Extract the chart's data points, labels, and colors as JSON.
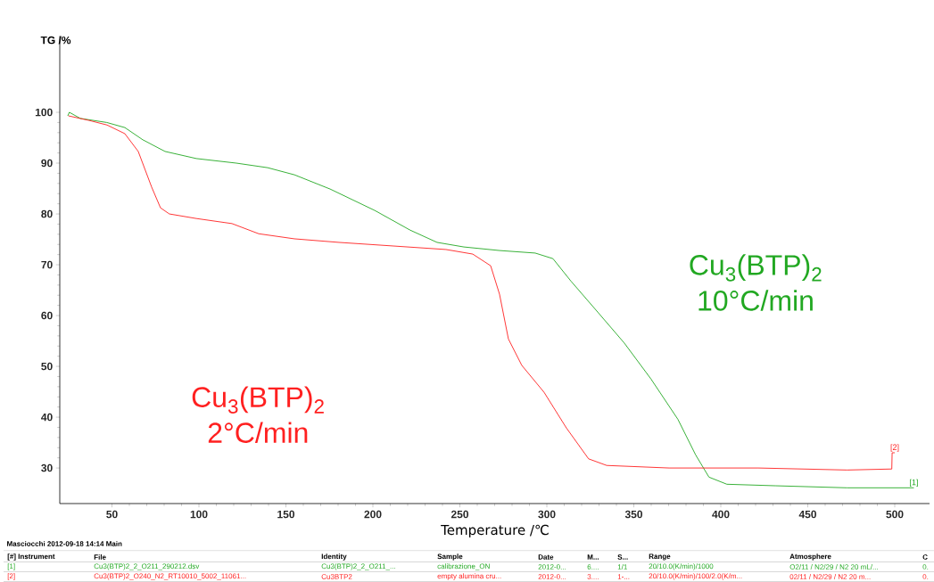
{
  "chart_data": {
    "type": "line",
    "xlabel": "Temperature /℃",
    "ylabel": "TG /%",
    "xlim": [
      20,
      520
    ],
    "ylim": [
      23,
      115
    ],
    "xticks": [
      50,
      100,
      150,
      200,
      250,
      300,
      350,
      400,
      450,
      500
    ],
    "yticks": [
      30,
      40,
      50,
      60,
      70,
      80,
      90,
      100
    ],
    "line_style": "solid",
    "series": [
      {
        "name": "Cu$_{3}$(BTP)$_{2}$ 10°C/min",
        "color": "#22a822",
        "x": [
          24.6,
          25.5,
          31.8,
          47,
          57.4,
          67.7,
          80.5,
          98.5,
          121.5,
          139.5,
          154.9,
          175.4,
          201,
          221.5,
          236.9,
          252.3,
          272.8,
          293.3,
          303.5,
          313.8,
          329.2,
          344.5,
          359.9,
          375.3,
          385.5,
          393.2,
          403.5,
          431.7,
          472.6,
          511
        ],
        "values": [
          99.3,
          100,
          98.8,
          98,
          97,
          94.6,
          92.3,
          90.9,
          90,
          89.1,
          87.7,
          84.9,
          80.7,
          76.8,
          74.4,
          73.5,
          72.8,
          72.3,
          71.2,
          66.8,
          60.7,
          54.6,
          47.5,
          39.6,
          32.6,
          28.2,
          26.8,
          26.5,
          26.1,
          26.1
        ]
      },
      {
        "name": "Cu$_{3}$(BTP)$_{2}$ 2°C/min",
        "color": "#ff2020",
        "x": [
          25,
          36.9,
          47.2,
          57.4,
          65.1,
          72.8,
          77.9,
          83,
          98.5,
          119,
          134.4,
          154.9,
          180.5,
          211.3,
          242,
          257.4,
          267.7,
          272.8,
          277.9,
          285.6,
          298.4,
          311.2,
          324,
          334.4,
          370.3,
          421.5,
          472.6,
          498.3,
          498.5,
          500
        ],
        "values": [
          99.3,
          98.4,
          97.5,
          95.8,
          92.3,
          85.3,
          81.2,
          80,
          79.1,
          78.1,
          76.1,
          75.1,
          74.4,
          73.7,
          73,
          72.1,
          69.8,
          64.2,
          55.4,
          50.2,
          44.9,
          37.9,
          31.8,
          30.5,
          30,
          30,
          29.6,
          29.8,
          33,
          33
        ]
      }
    ],
    "annotations": [
      "[1]",
      "[2]",
      "Masciocchi   2012-09-18 14:14   Main",
      "[#] Instrument",
      "File",
      "Identity",
      "Sample",
      "Date",
      "M...",
      "S...",
      "Range",
      "Atmosphere",
      "C",
      "[1]",
      "Cu3(BTP)2_2_O211_290212.dsv",
      "Cu3(BTP)2_2_O211_...",
      "calibrazione_ON",
      "2012-0...",
      "6....",
      "1/1",
      "20/10.0(K/min)/1000",
      "O2/11 / N2/29 /  N2 20 mL/...",
      "0.",
      "[2]",
      "Cu3(BTP)2_O240_N2_RT10010_5002_11061...",
      "Cu3BTP2",
      "empty alumina cru...",
      "2012-0...",
      "3....",
      "1-...",
      "20/10.0(K/min)/100/2.0(K/m...",
      "02/11 / N2/29 /  N2 20 m...",
      "0."
    ]
  }
}
